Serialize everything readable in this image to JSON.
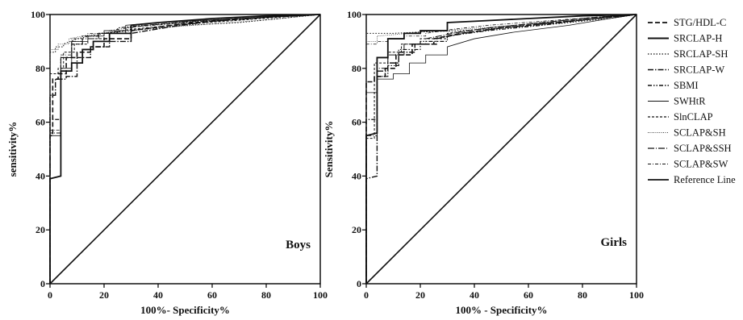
{
  "chart_data": [
    {
      "type": "line",
      "panel_label": "Boys",
      "xlabel": "100%- Specificity%",
      "ylabel": "sensitivity%",
      "xlim": [
        0,
        100
      ],
      "ylim": [
        0,
        100
      ],
      "xticks": [
        "0",
        "20",
        "40",
        "60",
        "80",
        "100"
      ],
      "yticks": [
        "0",
        "20",
        "40",
        "60",
        "80",
        "100"
      ],
      "grid": false,
      "series": [
        {
          "name": "STG/HDL-C",
          "x": [
            0,
            0,
            1,
            1,
            3,
            3,
            6,
            6,
            10,
            10,
            15,
            15,
            20,
            20,
            30,
            30,
            45,
            60,
            80,
            100
          ],
          "y": [
            0,
            55,
            55,
            76,
            76,
            78,
            78,
            84,
            84,
            86,
            86,
            88,
            88,
            91,
            91,
            94,
            96,
            97.5,
            99,
            100
          ]
        },
        {
          "name": "SRCLAP-H",
          "x": [
            0,
            0,
            4,
            4,
            8,
            8,
            12,
            12,
            16,
            16,
            22,
            22,
            30,
            30,
            40,
            60,
            80,
            100
          ],
          "y": [
            0,
            39,
            40,
            79,
            79,
            82,
            82,
            87,
            87,
            90,
            90,
            93,
            93,
            96,
            97,
            98.5,
            99.5,
            100
          ]
        },
        {
          "name": "SRCLAP-SH",
          "x": [
            0,
            0,
            2,
            2,
            5,
            5,
            10,
            15,
            20,
            30,
            50,
            70,
            90,
            100
          ],
          "y": [
            0,
            86,
            86,
            88,
            88,
            89,
            91,
            92,
            93,
            94,
            96,
            97,
            99,
            100
          ]
        },
        {
          "name": "SRCLAP-W",
          "x": [
            0,
            0,
            2,
            2,
            6,
            6,
            10,
            10,
            15,
            15,
            22,
            22,
            30,
            30,
            45,
            60,
            80,
            100
          ],
          "y": [
            0,
            70,
            70,
            76,
            76,
            77,
            77,
            84,
            84,
            88,
            88,
            90,
            90,
            93,
            95.5,
            97.5,
            99,
            100
          ]
        },
        {
          "name": "SBMI",
          "x": [
            0,
            0,
            4,
            4,
            8,
            8,
            12,
            12,
            18,
            18,
            25,
            25,
            35,
            50,
            70,
            100
          ],
          "y": [
            0,
            61,
            61,
            84,
            84,
            89,
            89,
            92,
            92,
            93,
            93,
            95,
            96,
            97,
            98.5,
            100
          ]
        },
        {
          "name": "SWHtR",
          "x": [
            0,
            0,
            4,
            4,
            8,
            8,
            14,
            14,
            20,
            20,
            28,
            28,
            40,
            60,
            80,
            100
          ],
          "y": [
            0,
            55,
            55,
            80,
            80,
            90,
            90,
            92,
            92,
            94,
            94,
            96,
            97,
            98,
            99,
            100
          ]
        },
        {
          "name": "SlnCLAP",
          "x": [
            0,
            0,
            3,
            3,
            5,
            5,
            9,
            9,
            14,
            14,
            20,
            20,
            30,
            45,
            65,
            85,
            100
          ],
          "y": [
            0,
            78,
            78,
            80,
            80,
            86,
            86,
            89,
            89,
            91,
            91,
            93,
            94.5,
            96,
            97.5,
            99,
            100
          ]
        },
        {
          "name": "SCLAP&SH",
          "x": [
            0,
            0,
            3,
            3,
            7,
            7,
            12,
            18,
            28,
            40,
            60,
            80,
            100
          ],
          "y": [
            0,
            87,
            87,
            89,
            89,
            91,
            92,
            93,
            94,
            95,
            96.5,
            98,
            100
          ]
        },
        {
          "name": "SCLAP&SSH",
          "x": [
            0,
            0,
            4,
            4,
            8,
            8,
            12,
            12,
            18,
            18,
            28,
            28,
            40,
            60,
            80,
            100
          ],
          "y": [
            0,
            56,
            56,
            84,
            84,
            90,
            90,
            91,
            91,
            93,
            93,
            95,
            96.5,
            98,
            99,
            100
          ]
        },
        {
          "name": "SCLAP&SW",
          "x": [
            0,
            0,
            4,
            4,
            8,
            8,
            14,
            14,
            22,
            22,
            32,
            45,
            65,
            85,
            100
          ],
          "y": [
            0,
            57,
            57,
            85,
            85,
            91,
            91,
            93,
            93,
            94,
            95.5,
            96.5,
            98,
            99.5,
            100
          ]
        },
        {
          "name": "Reference Line",
          "x": [
            0,
            100
          ],
          "y": [
            0,
            100
          ]
        }
      ]
    },
    {
      "type": "line",
      "panel_label": "Girls",
      "xlabel": "100% - Specificity%",
      "ylabel": "Sensitivity%",
      "xlim": [
        0,
        100
      ],
      "ylim": [
        0,
        100
      ],
      "xticks": [
        "0",
        "20",
        "40",
        "60",
        "80",
        "100"
      ],
      "yticks": [
        "0",
        "20",
        "40",
        "60",
        "80",
        "100"
      ],
      "grid": false,
      "series": [
        {
          "name": "STG/HDL-C",
          "x": [
            0,
            0,
            3,
            3,
            7,
            7,
            11,
            11,
            17,
            17,
            25,
            25,
            35,
            50,
            70,
            90,
            100
          ],
          "y": [
            0,
            75,
            75,
            77,
            77,
            80,
            80,
            85,
            85,
            89,
            89,
            91,
            93,
            95,
            97,
            99,
            100
          ]
        },
        {
          "name": "SRCLAP-H",
          "x": [
            0,
            0,
            4,
            4,
            8,
            8,
            14,
            14,
            20,
            20,
            30,
            30,
            40,
            60,
            80,
            100
          ],
          "y": [
            0,
            55,
            56,
            84,
            84,
            91,
            91,
            93,
            93,
            94,
            94,
            97,
            97.5,
            98.5,
            99.5,
            100
          ]
        },
        {
          "name": "SRCLAP-SH",
          "x": [
            0,
            0,
            4,
            4,
            10,
            20,
            35,
            50,
            70,
            90,
            100
          ],
          "y": [
            0,
            93,
            93,
            93,
            93,
            93.5,
            94,
            95,
            96.5,
            98.5,
            100
          ]
        },
        {
          "name": "SRCLAP-W",
          "x": [
            0,
            0,
            4,
            4,
            8,
            8,
            12,
            12,
            18,
            18,
            26,
            26,
            36,
            50,
            70,
            90,
            100
          ],
          "y": [
            0,
            39,
            40,
            79,
            79,
            82,
            82,
            86,
            86,
            89,
            89,
            91,
            93,
            95,
            97,
            99,
            100
          ]
        },
        {
          "name": "SBMI",
          "x": [
            0,
            0,
            4,
            4,
            8,
            8,
            12,
            12,
            20,
            20,
            30,
            30,
            45,
            65,
            85,
            100
          ],
          "y": [
            0,
            61,
            61,
            77,
            77,
            81,
            81,
            87,
            87,
            90,
            90,
            92,
            94,
            96,
            98.5,
            100
          ]
        },
        {
          "name": "SWHtR",
          "x": [
            0,
            0,
            4,
            4,
            10,
            10,
            16,
            16,
            22,
            22,
            30,
            30,
            40,
            55,
            75,
            90,
            100
          ],
          "y": [
            0,
            71,
            71,
            76,
            76,
            78,
            78,
            82,
            82,
            85,
            85,
            88,
            91,
            93.5,
            96,
            98.5,
            100
          ]
        },
        {
          "name": "SlnCLAP",
          "x": [
            0,
            0,
            3,
            3,
            8,
            8,
            13,
            13,
            20,
            20,
            30,
            30,
            45,
            65,
            85,
            100
          ],
          "y": [
            0,
            54,
            54,
            82,
            82,
            86,
            86,
            89,
            89,
            91,
            91,
            93,
            95,
            97,
            99,
            100
          ]
        },
        {
          "name": "SCLAP&SH",
          "x": [
            0,
            0,
            4,
            4,
            10,
            20,
            35,
            55,
            75,
            90,
            100
          ],
          "y": [
            0,
            90,
            90,
            92,
            92.5,
            93.5,
            94.5,
            96,
            97.5,
            99,
            100
          ]
        },
        {
          "name": "SCLAP&SSH",
          "x": [
            0,
            0,
            4,
            4,
            8,
            8,
            14,
            14,
            22,
            22,
            32,
            45,
            65,
            85,
            100
          ],
          "y": [
            0,
            55,
            55,
            80,
            80,
            85,
            85,
            89,
            89,
            91,
            93,
            95,
            97,
            99,
            100
          ]
        },
        {
          "name": "SCLAP&SW",
          "x": [
            0,
            0,
            4,
            4,
            8,
            8,
            14,
            14,
            22,
            22,
            32,
            45,
            65,
            85,
            100
          ],
          "y": [
            0,
            89,
            89,
            90,
            90,
            91,
            91,
            92,
            92,
            93,
            94.5,
            96,
            97.5,
            99,
            100
          ]
        },
        {
          "name": "Reference Line",
          "x": [
            0,
            100
          ],
          "y": [
            0,
            100
          ]
        }
      ]
    }
  ],
  "legend": {
    "placement": "right",
    "items": [
      {
        "label": "STG/HDL-C",
        "style": "dash"
      },
      {
        "label": "SRCLAP-H",
        "style": "solid-bold"
      },
      {
        "label": "SRCLAP-SH",
        "style": "dot"
      },
      {
        "label": "SRCLAP-W",
        "style": "dash-dot"
      },
      {
        "label": "SBMI",
        "style": "dash-dot-dot"
      },
      {
        "label": "SWHtR",
        "style": "solid-thin"
      },
      {
        "label": "SlnCLAP",
        "style": "short-dash"
      },
      {
        "label": "SCLAP&SH",
        "style": "fine-dot"
      },
      {
        "label": "SCLAP&SSH",
        "style": "long-dash-dot"
      },
      {
        "label": "SCLAP&SW",
        "style": "dash-dot-fine"
      },
      {
        "label": "Reference Line",
        "style": "solid-ref"
      }
    ]
  },
  "colors": {
    "line": "#111111",
    "axis": "#000000",
    "background": "#ffffff"
  }
}
